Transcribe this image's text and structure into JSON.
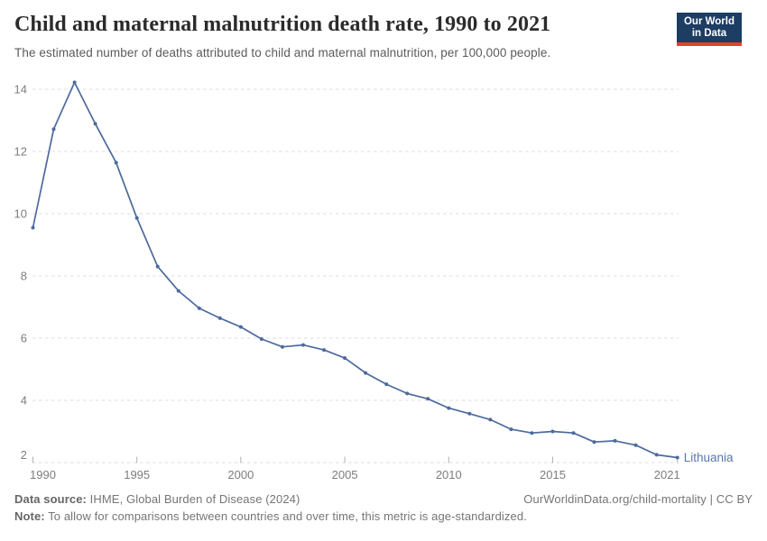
{
  "header": {
    "title": "Child and maternal malnutrition death rate, 1990 to 2021",
    "subtitle": "The estimated number of deaths attributed to child and maternal malnutrition, per 100,000 people.",
    "logo_line1": "Our World",
    "logo_line2": "in Data"
  },
  "chart_data": {
    "type": "line",
    "title": "Child and maternal malnutrition death rate, 1990 to 2021",
    "xlabel": "",
    "ylabel": "",
    "x": [
      1990,
      1991,
      1992,
      1993,
      1994,
      1995,
      1996,
      1997,
      1998,
      1999,
      2000,
      2001,
      2002,
      2003,
      2004,
      2005,
      2006,
      2007,
      2008,
      2009,
      2010,
      2011,
      2012,
      2013,
      2014,
      2015,
      2016,
      2017,
      2018,
      2019,
      2020,
      2021
    ],
    "series": [
      {
        "name": "Lithuania",
        "values": [
          9.55,
          12.72,
          14.22,
          12.89,
          11.64,
          9.86,
          8.3,
          7.52,
          6.96,
          6.64,
          6.36,
          5.97,
          5.72,
          5.78,
          5.62,
          5.36,
          4.88,
          4.52,
          4.22,
          4.05,
          3.75,
          3.57,
          3.38,
          3.07,
          2.95,
          3.0,
          2.95,
          2.66,
          2.7,
          2.56,
          2.25,
          2.16
        ]
      }
    ],
    "ylim": [
      2,
      14
    ],
    "yticks": [
      2,
      4,
      6,
      8,
      10,
      12,
      14
    ],
    "xticks": [
      1990,
      1995,
      2000,
      2005,
      2010,
      2015,
      2021
    ],
    "grid": "horizontal-dashed",
    "legend_position": "end-of-line-label",
    "end_label": "Lithuania"
  },
  "colors": {
    "series": "#4c6a9c",
    "series_label": "#5878ad",
    "logo_bg": "#1d3d63",
    "logo_accent": "#e0432d",
    "grid": "#dcdcdc",
    "tick_label": "#7d7d7d",
    "title_text": "#2b2b2b",
    "subtitle_text": "#5b5b5b",
    "footer_text": "#757575"
  },
  "footer": {
    "source_label": "Data source:",
    "source_text": " IHME, Global Burden of Disease (2024)",
    "link_text": "OurWorldinData.org/child-mortality | CC BY",
    "note_label": "Note:",
    "note_text": " To allow for comparisons between countries and over time, this metric is age-standardized."
  }
}
